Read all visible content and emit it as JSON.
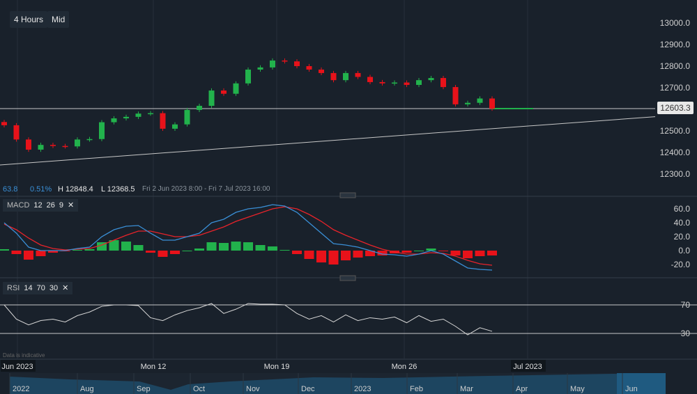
{
  "toolbar": {
    "interval": "4 Hours",
    "price_type": "Mid"
  },
  "info": {
    "change": "63.8",
    "change_pct": "0.51%",
    "high": "H 12848.4",
    "low": "L 12368.5",
    "range": "Fri 2 Jun 2023 8:00 - Fri 7 Jul 2023 16:00"
  },
  "disclaimer": "Data is indicative",
  "colors": {
    "up": "#22b24c",
    "down": "#e8121a",
    "macd": "#3a8fd6",
    "signal": "#e8232a",
    "rsi": "#d8d8d8"
  },
  "chart_data": [
    {
      "type": "candlestick",
      "title": "",
      "yticks": [
        "13000.0",
        "12900.0",
        "12800.0",
        "12700.0",
        "12600.0",
        "12500.0",
        "12400.0",
        "12300.0"
      ],
      "ylim": [
        12250,
        13050
      ],
      "last_price": "12603.3",
      "xticks": [
        "Jun 2023",
        "Mon 12",
        "Mon 19",
        "Mon 26",
        "Jul 2023"
      ],
      "closes": [
        12526,
        12460,
        12413,
        12435,
        12430,
        12428,
        12460,
        12462,
        12540,
        12558,
        12565,
        12580,
        12582,
        12510,
        12530,
        12597,
        12616,
        12687,
        12672,
        12720,
        12784,
        12794,
        12826,
        12822,
        12800,
        12784,
        12768,
        12735,
        12768,
        12750,
        12726,
        12720,
        12724,
        12713,
        12735,
        12745,
        12703,
        12623,
        12630,
        12650,
        12603
      ],
      "trendline": [
        12342,
        12580
      ]
    },
    {
      "type": "line",
      "title": "MACD",
      "params": [
        "12",
        "26",
        "9"
      ],
      "yticks": [
        "60.0",
        "40.0",
        "20.0",
        "0.0",
        "-20.0"
      ],
      "ylim": [
        -30,
        70
      ],
      "macd": [
        40,
        25,
        5,
        0,
        0,
        0,
        3,
        5,
        20,
        30,
        35,
        36,
        25,
        15,
        15,
        20,
        25,
        40,
        45,
        55,
        60,
        62,
        66,
        64,
        55,
        40,
        25,
        10,
        8,
        5,
        0,
        -5,
        -6,
        -8,
        -5,
        0,
        -5,
        -15,
        -25,
        -27,
        -28
      ],
      "signal": [
        38,
        30,
        18,
        8,
        3,
        1,
        2,
        3,
        8,
        15,
        22,
        28,
        28,
        24,
        20,
        20,
        22,
        28,
        34,
        42,
        48,
        54,
        60,
        63,
        60,
        52,
        42,
        30,
        22,
        15,
        8,
        2,
        -2,
        -5,
        -5,
        -3,
        -4,
        -8,
        -14,
        -19,
        -21
      ]
    },
    {
      "type": "line",
      "title": "RSI",
      "params": [
        "14",
        "70",
        "30"
      ],
      "yticks": [
        "70",
        "30"
      ],
      "ylim": [
        15,
        85
      ],
      "values": [
        70,
        50,
        42,
        48,
        50,
        46,
        55,
        60,
        68,
        70,
        70,
        69,
        52,
        48,
        56,
        62,
        66,
        72,
        58,
        64,
        72,
        71,
        71,
        70,
        58,
        50,
        55,
        46,
        56,
        48,
        52,
        50,
        53,
        45,
        55,
        47,
        50,
        40,
        28,
        38,
        33
      ]
    }
  ],
  "time_axis": [
    "Jun 2023",
    "Mon 12",
    "Mon 19",
    "Mon 26",
    "Jul 2023"
  ],
  "navigator": [
    "2022",
    "Aug",
    "Sep",
    "Oct",
    "Nov",
    "Dec",
    "2023",
    "Feb",
    "Mar",
    "Apr",
    "May",
    "Jun"
  ]
}
